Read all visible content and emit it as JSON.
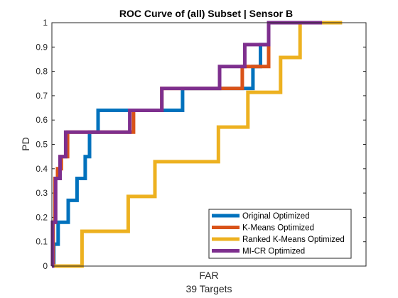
{
  "chart_data": {
    "type": "line",
    "title": "ROC Curve of (all) Subset | Sensor B",
    "xlabel": "FAR",
    "xlabel_sub": "39 Targets",
    "ylabel": "PD",
    "xlim": [
      0,
      1
    ],
    "ylim": [
      0,
      1
    ],
    "yticks": [
      0,
      0.1,
      0.2,
      0.3,
      0.4,
      0.5,
      0.6,
      0.7,
      0.8,
      0.9,
      1
    ],
    "ytick_labels": [
      "0",
      "0.1",
      "0.2",
      "0.3",
      "0.4",
      "0.5",
      "0.6",
      "0.7",
      "0.8",
      "0.9",
      "1"
    ],
    "grid": false,
    "legend_position": "bottom-right",
    "series": [
      {
        "name": "Original Optimized",
        "color": "#0072BD",
        "x": [
          0,
          0.006,
          0.006,
          0.02,
          0.02,
          0.052,
          0.052,
          0.08,
          0.08,
          0.106,
          0.106,
          0.12,
          0.12,
          0.147,
          0.147,
          0.24,
          0.24,
          0.416,
          0.416,
          0.551,
          0.551,
          0.59,
          0.59,
          0.64,
          0.64,
          0.664,
          0.664,
          0.69,
          0.69,
          0.77
        ],
        "y": [
          0,
          0,
          0.09,
          0.09,
          0.18,
          0.18,
          0.27,
          0.27,
          0.36,
          0.36,
          0.45,
          0.45,
          0.55,
          0.55,
          0.64,
          0.64,
          0.64,
          0.64,
          0.73,
          0.73,
          0.73,
          0.73,
          0.73,
          0.73,
          0.82,
          0.82,
          0.91,
          0.91,
          1.0,
          1.0
        ]
      },
      {
        "name": "K-Means Optimized",
        "color": "#D95319",
        "x": [
          0,
          0.004,
          0.004,
          0.01,
          0.01,
          0.012,
          0.012,
          0.018,
          0.018,
          0.03,
          0.03,
          0.05,
          0.05,
          0.26,
          0.26,
          0.35,
          0.35,
          0.534,
          0.534,
          0.606,
          0.606,
          0.612,
          0.612,
          0.69,
          0.69,
          0.77
        ],
        "y": [
          0,
          0,
          0.18,
          0.18,
          0.36,
          0.36,
          0.36,
          0.36,
          0.4,
          0.4,
          0.45,
          0.45,
          0.55,
          0.55,
          0.64,
          0.64,
          0.73,
          0.73,
          0.73,
          0.73,
          0.82,
          0.82,
          0.82,
          0.82,
          1.0,
          1.0
        ]
      },
      {
        "name": "Ranked K-Means Optimized",
        "color": "#EDB120",
        "x": [
          0,
          0.096,
          0.096,
          0.243,
          0.243,
          0.328,
          0.328,
          0.53,
          0.53,
          0.624,
          0.624,
          0.728,
          0.728,
          0.79,
          0.79,
          0.826,
          0.826,
          0.86,
          0.86,
          0.924
        ],
        "y": [
          0,
          0,
          0.143,
          0.143,
          0.286,
          0.286,
          0.429,
          0.429,
          0.571,
          0.571,
          0.714,
          0.714,
          0.857,
          0.857,
          1.0,
          1.0,
          1.0,
          1.0,
          1.0,
          1.0
        ]
      },
      {
        "name": "MI-CR Optimized",
        "color": "#7E2F8E",
        "x": [
          0,
          0.002,
          0.002,
          0.012,
          0.012,
          0.026,
          0.026,
          0.044,
          0.044,
          0.248,
          0.248,
          0.35,
          0.35,
          0.534,
          0.534,
          0.614,
          0.614,
          0.69,
          0.69,
          0.77,
          0.77,
          0.86
        ],
        "y": [
          0,
          0,
          0.18,
          0.18,
          0.36,
          0.36,
          0.45,
          0.45,
          0.55,
          0.55,
          0.64,
          0.64,
          0.73,
          0.73,
          0.82,
          0.82,
          0.91,
          0.91,
          1.0,
          1.0,
          1.0,
          1.0
        ]
      }
    ]
  }
}
